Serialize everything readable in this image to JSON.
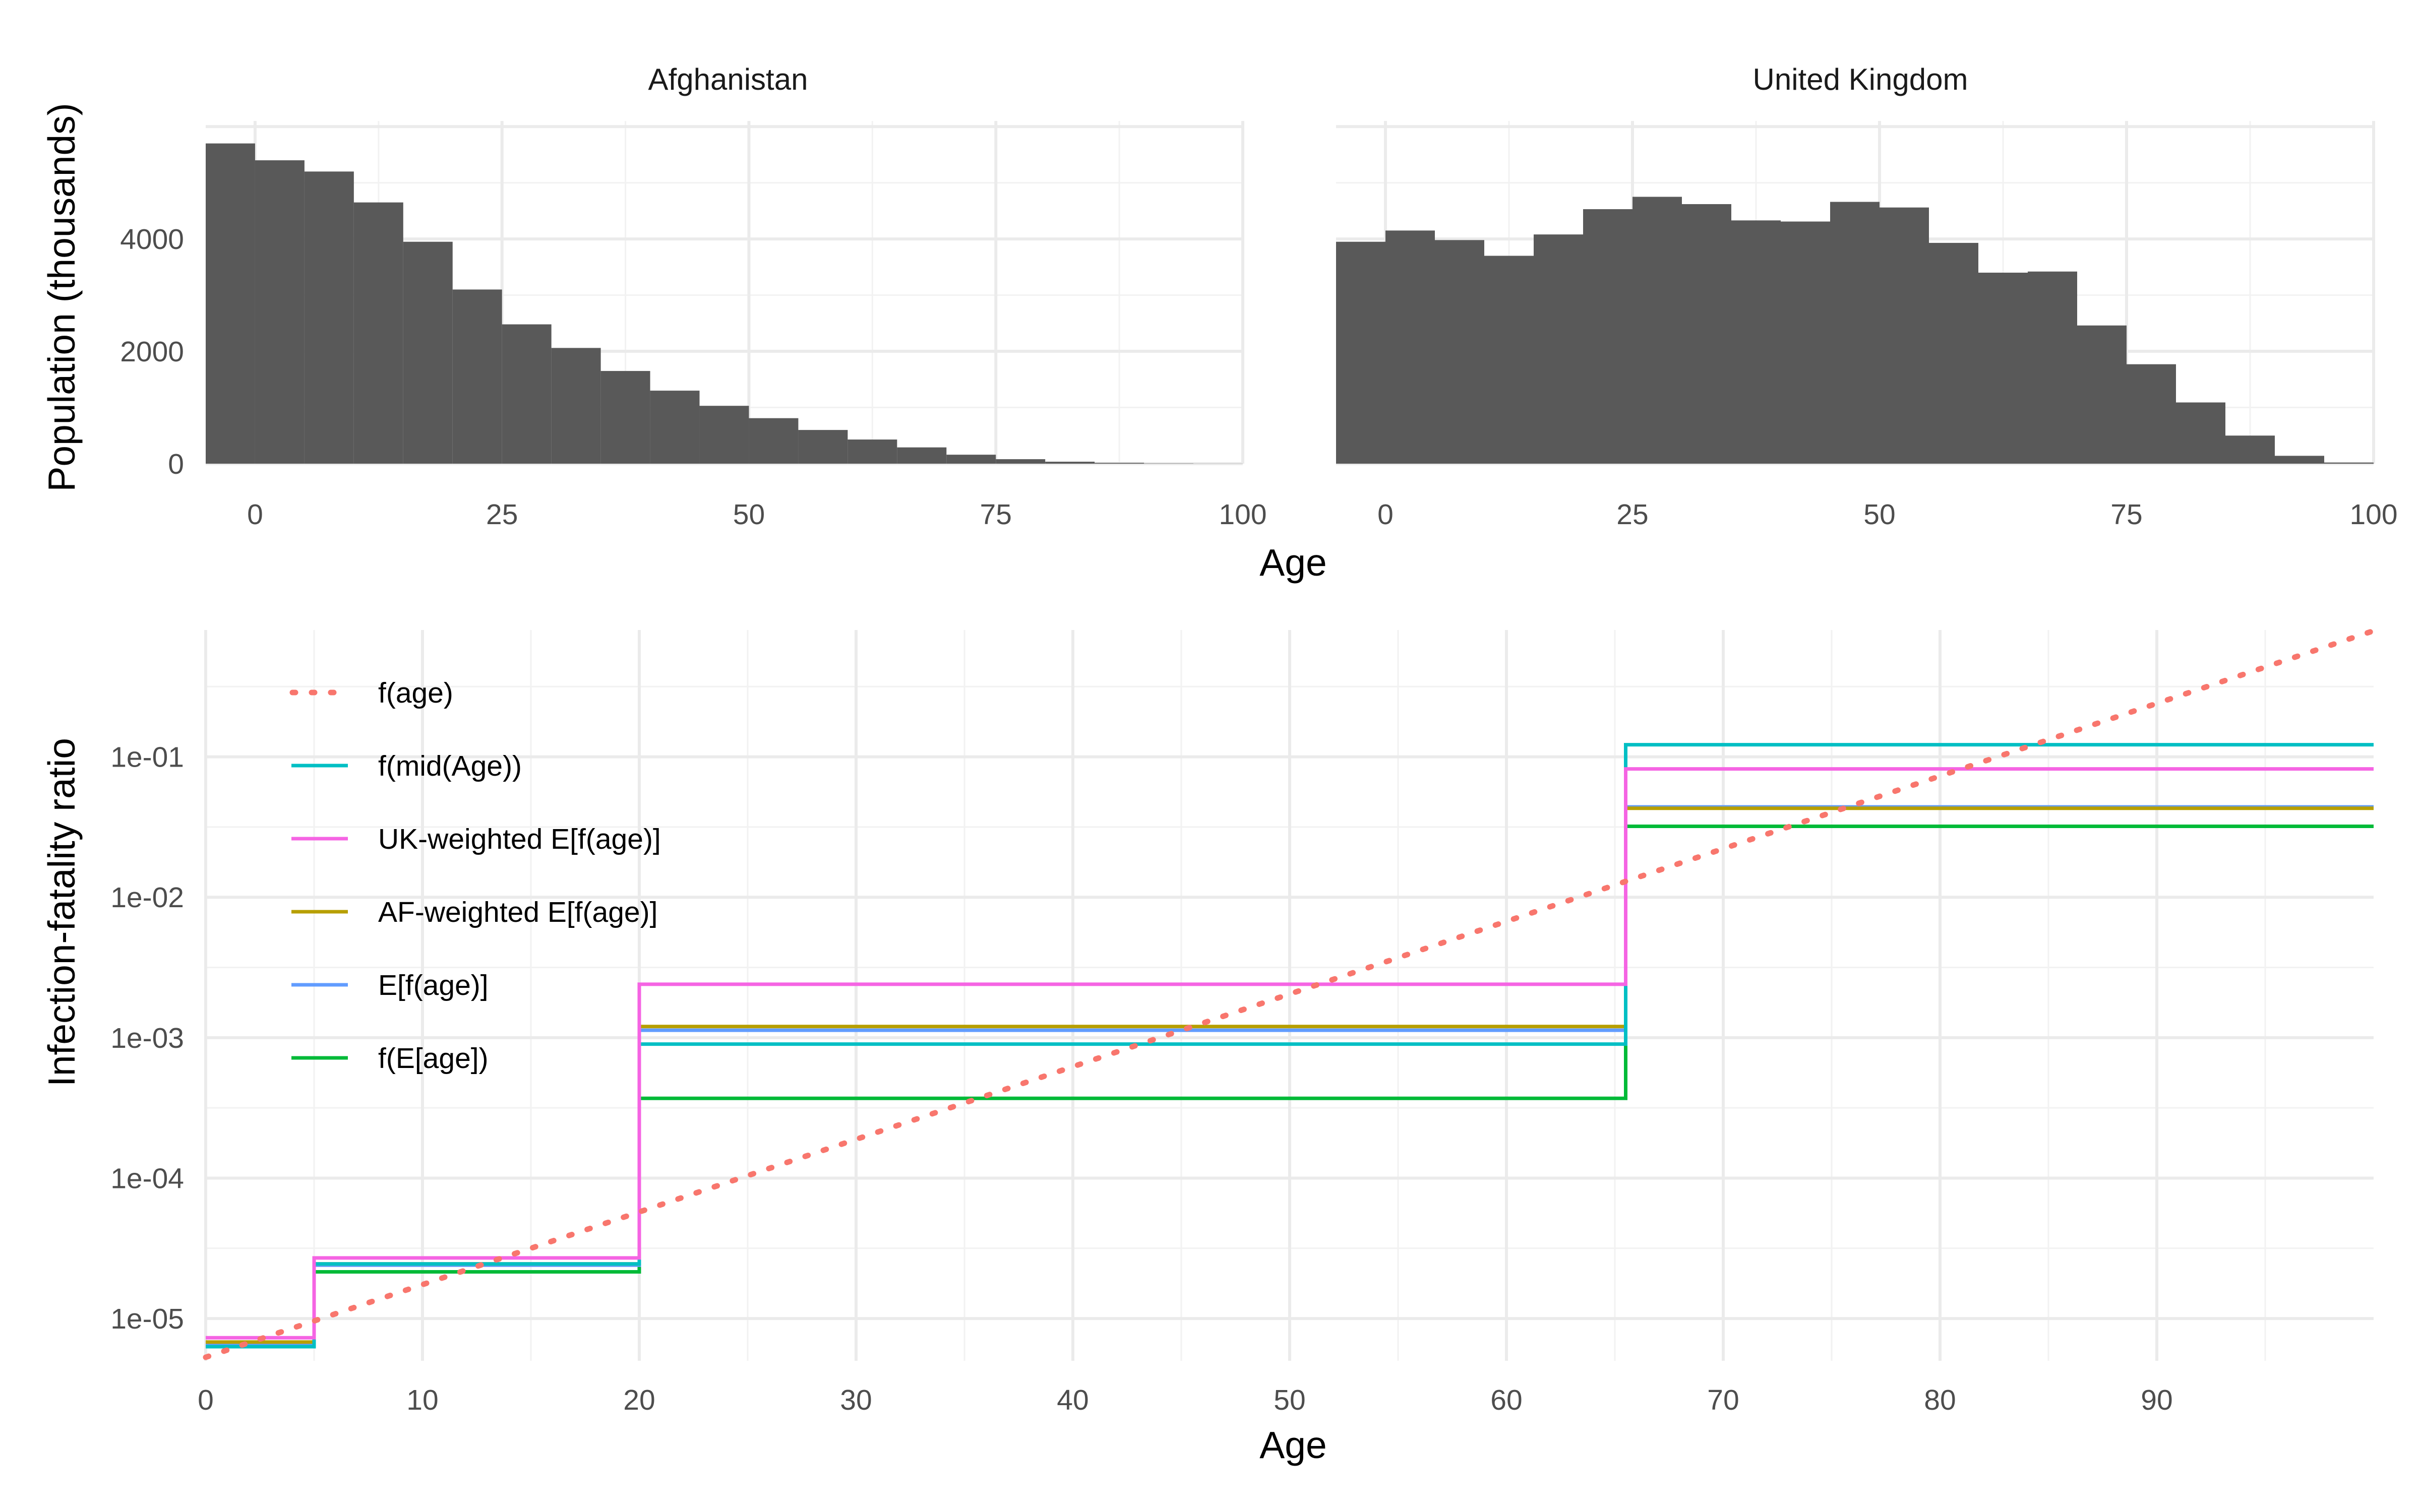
{
  "colors": {
    "bar": "#595959",
    "grid_major": "#EBEBEB",
    "grid_minor": "#F2F2F2",
    "f_age": "#F8766D",
    "f_mid_age": "#00BFC4",
    "uk_weighted": "#F564E3",
    "af_weighted": "#B79F00",
    "e_f_age": "#619CFF",
    "f_e_age": "#00BA38"
  },
  "chart_data": [
    {
      "type": "bar",
      "panel": "Afghanistan",
      "strip_title": "Afghanistan",
      "ylabel": "Population (thousands)",
      "xlim": [
        -5,
        100
      ],
      "ylim": [
        0,
        6100
      ],
      "xticks": [
        "0",
        "25",
        "50",
        "75",
        "100"
      ],
      "yticks": [
        "0",
        "2000",
        "4000"
      ],
      "bin_width": 5,
      "bin_starts": [
        -5,
        0,
        5,
        10,
        15,
        20,
        25,
        30,
        35,
        40,
        45,
        50,
        55,
        60,
        65,
        70,
        75,
        80,
        85,
        90,
        95
      ],
      "values": [
        5700,
        5400,
        5200,
        4650,
        3950,
        3100,
        2480,
        2060,
        1650,
        1300,
        1030,
        810,
        600,
        430,
        290,
        160,
        80,
        35,
        15,
        5,
        2
      ]
    },
    {
      "type": "bar",
      "panel": "United Kingdom",
      "strip_title": "United Kingdom",
      "xlabel": "Age",
      "xlim": [
        -5,
        100
      ],
      "ylim": [
        0,
        6100
      ],
      "xticks": [
        "0",
        "25",
        "50",
        "75",
        "100"
      ],
      "bin_width": 5,
      "bin_starts": [
        -5,
        0,
        5,
        10,
        15,
        20,
        25,
        30,
        35,
        40,
        45,
        50,
        55,
        60,
        65,
        70,
        75,
        80,
        85,
        90,
        95
      ],
      "values": [
        3950,
        4150,
        3980,
        3700,
        4080,
        4530,
        4750,
        4620,
        4330,
        4310,
        4660,
        4560,
        3930,
        3400,
        3420,
        2460,
        1770,
        1090,
        500,
        140,
        20
      ]
    },
    {
      "type": "line",
      "xlabel": "Age",
      "ylabel": "Infection-fatality ratio",
      "xlim": [
        0,
        100
      ],
      "ylog": true,
      "ylim": [
        5e-06,
        0.8
      ],
      "xticks": [
        "0",
        "10",
        "20",
        "30",
        "40",
        "50",
        "60",
        "70",
        "80",
        "90"
      ],
      "yticks": [
        "1e-05",
        "1e-04",
        "1e-03",
        "1e-02",
        "1e-01"
      ],
      "breaks": [
        0,
        5,
        20,
        65.5,
        100
      ],
      "series": [
        {
          "name": "f(age)",
          "key": "f_age",
          "kind": "dotted",
          "x": [
            0,
            100
          ],
          "y": [
            5.3e-06,
            0.79
          ]
        },
        {
          "name": "f(mid(Age))",
          "key": "f_mid_age",
          "kind": "step",
          "values": [
            6.3e-06,
            2.45e-05,
            0.0009,
            0.122
          ]
        },
        {
          "name": "UK-weighted E[f(age)]",
          "key": "uk_weighted",
          "kind": "step",
          "values": [
            7.3e-06,
            2.7e-05,
            0.0024,
            0.082
          ]
        },
        {
          "name": "AF-weighted E[f(age)]",
          "key": "af_weighted",
          "kind": "step",
          "values": [
            6.8e-06,
            2.45e-05,
            0.0012,
            0.043
          ]
        },
        {
          "name": "E[f(age)]",
          "key": "e_f_age",
          "kind": "step",
          "values": [
            6.6e-06,
            2.4e-05,
            0.00113,
            0.044
          ]
        },
        {
          "name": "f(E[age])",
          "key": "f_e_age",
          "kind": "step",
          "values": [
            6.4e-06,
            2.15e-05,
            0.00037,
            0.032
          ]
        }
      ]
    }
  ]
}
